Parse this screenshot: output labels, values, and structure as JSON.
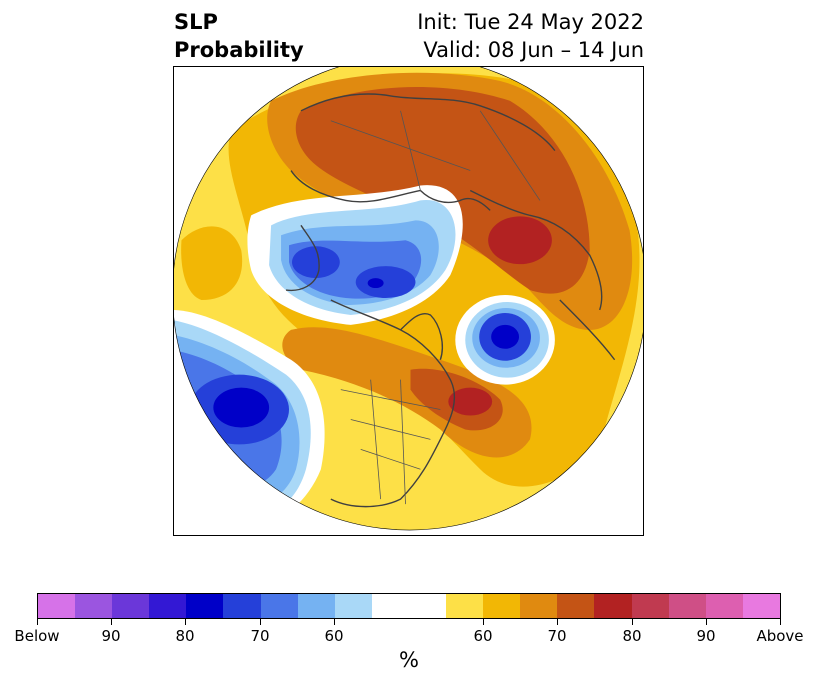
{
  "title": {
    "left_line1": "SLP",
    "left_line2": "Probability",
    "right_line1": "Init: Tue 24 May 2022",
    "right_line2": "Valid: 08 Jun – 14 Jun"
  },
  "map": {
    "description_icon": "north-polar-stereographic-map",
    "colors": {
      "yellow": "#fde047",
      "gold": "#f2b705",
      "orange": "#e08a10",
      "dark_orange": "#c45415",
      "red": "#b22222",
      "light_blue": "#a9d8f7",
      "sky_blue": "#75b2f2",
      "blue": "#4a76e8",
      "royal_blue": "#2540d9",
      "deep_blue": "#0000c8",
      "coast": "#404040"
    }
  },
  "colorbar": {
    "colors": [
      "#d672e8",
      "#9b55e0",
      "#6b37d9",
      "#3318d4",
      "#0000c8",
      "#2540d9",
      "#4a76e8",
      "#75b2f2",
      "#a9d8f7",
      "#ffffff",
      "#ffffff",
      "#fde047",
      "#f2b705",
      "#e08a10",
      "#c45415",
      "#b22222",
      "#c03a50",
      "#cf4f86",
      "#dd5fb0",
      "#e879e0"
    ],
    "tick_labels": [
      "Below",
      "90",
      "80",
      "70",
      "60",
      "60",
      "70",
      "80",
      "90",
      "Above"
    ],
    "unit_label": "%"
  }
}
